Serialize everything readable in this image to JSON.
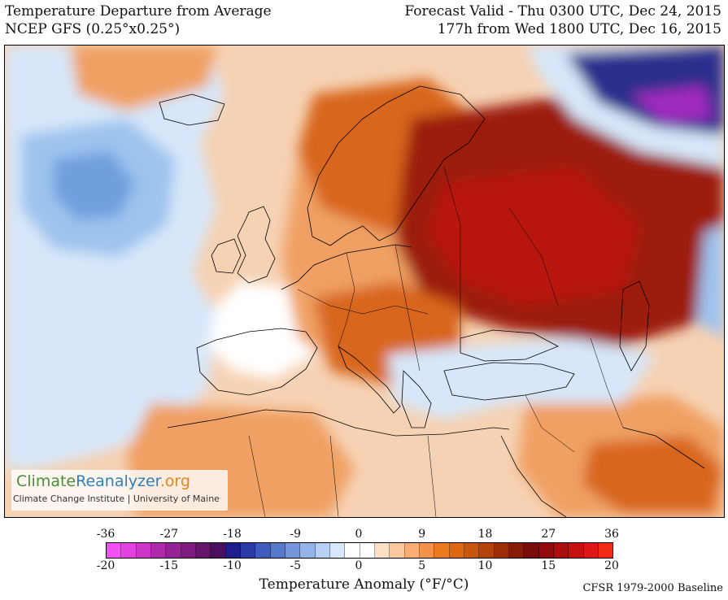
{
  "header": {
    "title": "Temperature Departure from Average",
    "model": "NCEP GFS (0.25°x0.25°)",
    "forecast_valid": "Forecast Valid - Thu 0300 UTC, Dec 24, 2015",
    "lead_time": "177h from Wed 1800 UTC, Dec 16, 2015"
  },
  "watermark": {
    "brand_part1": "Climate",
    "brand_part2": "Reanalyzer",
    "brand_part3": ".org",
    "subtitle": "Climate Change Institute | University of Maine"
  },
  "legend": {
    "label": "Temperature Anomaly (°F/°C)",
    "baseline": "CFSR 1979-2000 Baseline",
    "f_ticks": [
      "-36",
      "-27",
      "-18",
      "-9",
      "0",
      "9",
      "18",
      "27",
      "36"
    ],
    "c_ticks": [
      "-20",
      "-15",
      "-10",
      "-5",
      "0",
      "5",
      "10",
      "15",
      "20"
    ],
    "colors": [
      "#f451f4",
      "#e342e0",
      "#cc35c8",
      "#b02aac",
      "#952296",
      "#7d1b80",
      "#65156b",
      "#4a1060",
      "#1d1e8c",
      "#2b3aa6",
      "#3e5bbd",
      "#5679cc",
      "#7397da",
      "#93b4e8",
      "#b7d0f3",
      "#d8e7fa",
      "#ffffff",
      "#ffffff",
      "#fde0c4",
      "#fbc89d",
      "#f7ad73",
      "#f3924a",
      "#ed7a1f",
      "#de6812",
      "#c9560e",
      "#b3430b",
      "#9c2f08",
      "#861b06",
      "#7a0c0c",
      "#940a0a",
      "#ad0d0d",
      "#c60f0f",
      "#de1616",
      "#f22a16"
    ]
  },
  "map": {
    "region": "Europe, North Africa and Middle East",
    "colors": {
      "warm_light": "#f6d2b4",
      "warm_mid": "#f0a064",
      "warm_strong": "#d8661a",
      "hot": "#9c1a0c",
      "very_hot": "#b8160c",
      "cool_light": "#d7e7f9",
      "cool_mid": "#9ec3ee",
      "cool_strong": "#6f9fde",
      "cold_deep": "#2b2e8c",
      "cold_purple": "#a12cc0",
      "neutral": "#ffffff",
      "border": "#000000"
    }
  }
}
